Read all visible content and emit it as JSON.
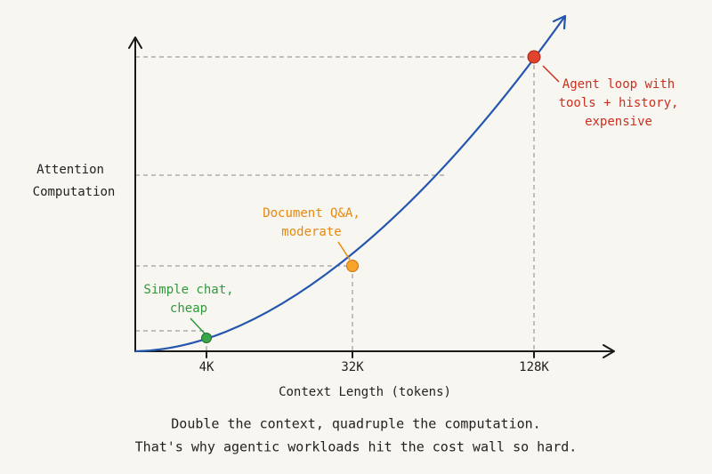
{
  "diagram": {
    "y_label": [
      "Attention",
      "Computation"
    ],
    "x_label": "Context Length (tokens)",
    "x_ticks": [
      "4K",
      "32K",
      "128K"
    ],
    "annotations": [
      {
        "lines": [
          "Simple chat,",
          "cheap"
        ]
      },
      {
        "lines": [
          "Document Q&A,",
          "moderate"
        ]
      },
      {
        "lines": [
          "Agent loop with",
          "tools + history,",
          "expensive"
        ]
      }
    ],
    "caption": [
      "Double the context, quadruple the computation.",
      "That's why agentic workloads hit the cost wall so hard."
    ]
  }
}
